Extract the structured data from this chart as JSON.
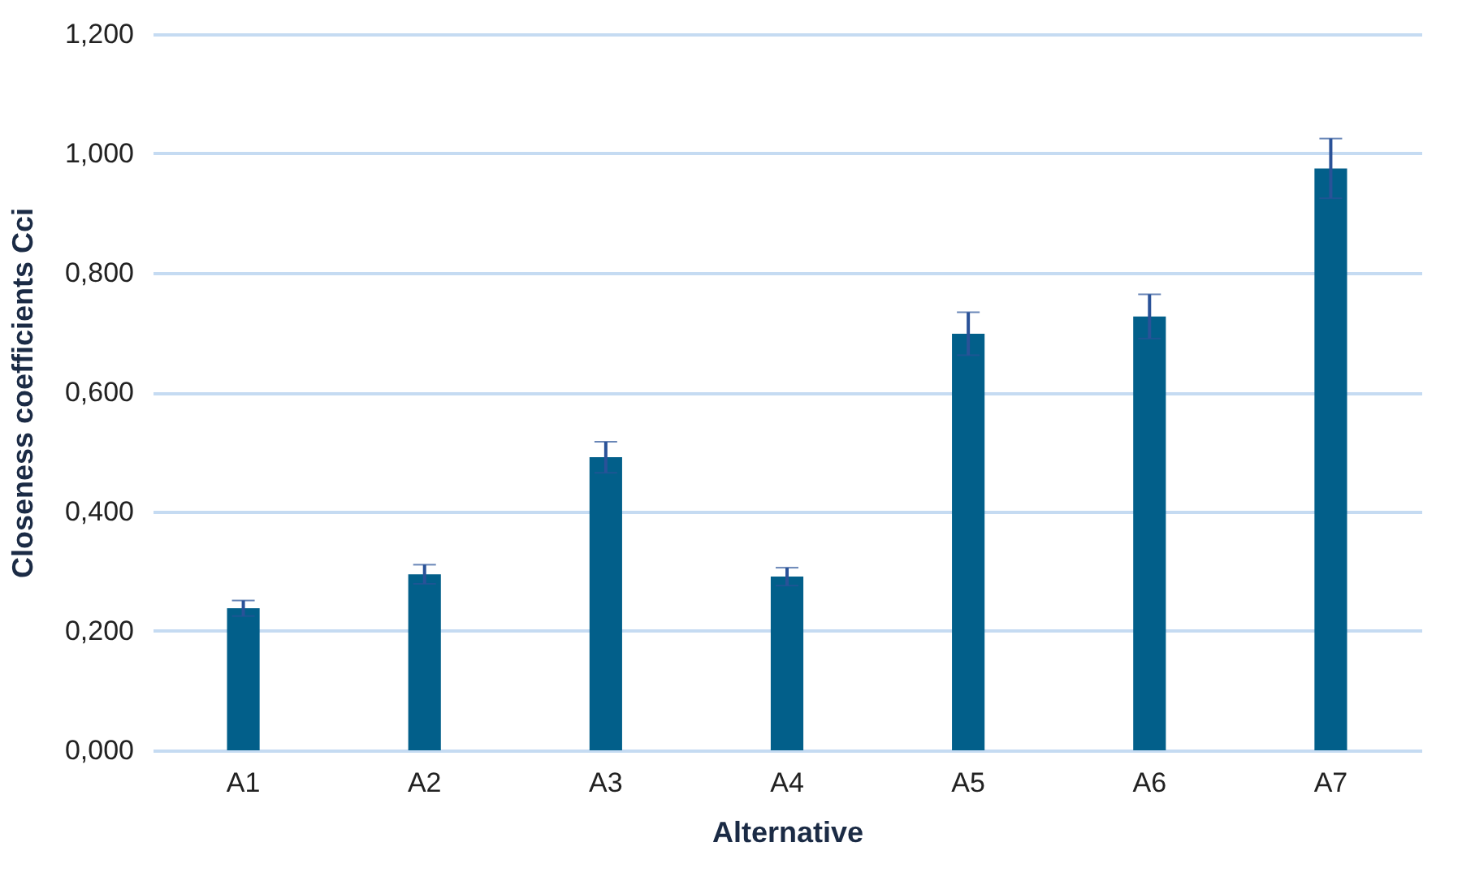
{
  "chart_data": {
    "type": "bar",
    "xlabel": "Alternative",
    "ylabel": "Closeness coefficients Cci",
    "categories": [
      "A1",
      "A2",
      "A3",
      "A4",
      "A5",
      "A6",
      "A7"
    ],
    "values": [
      0.238,
      0.295,
      0.491,
      0.291,
      0.698,
      0.727,
      0.975
    ],
    "errors": [
      0.013,
      0.016,
      0.026,
      0.015,
      0.036,
      0.037,
      0.05
    ],
    "color": "#025f8a",
    "ylim": [
      0,
      1.2
    ],
    "yticks": [
      {
        "value": 0,
        "label": "0,000"
      },
      {
        "value": 0.2,
        "label": "0,200"
      },
      {
        "value": 0.4,
        "label": "0,400"
      },
      {
        "value": 0.6,
        "label": "0,600"
      },
      {
        "value": 0.8,
        "label": "0,800"
      },
      {
        "value": 1,
        "label": "1,000"
      },
      {
        "value": 1.2,
        "label": "1,200"
      }
    ],
    "grid": "y"
  }
}
